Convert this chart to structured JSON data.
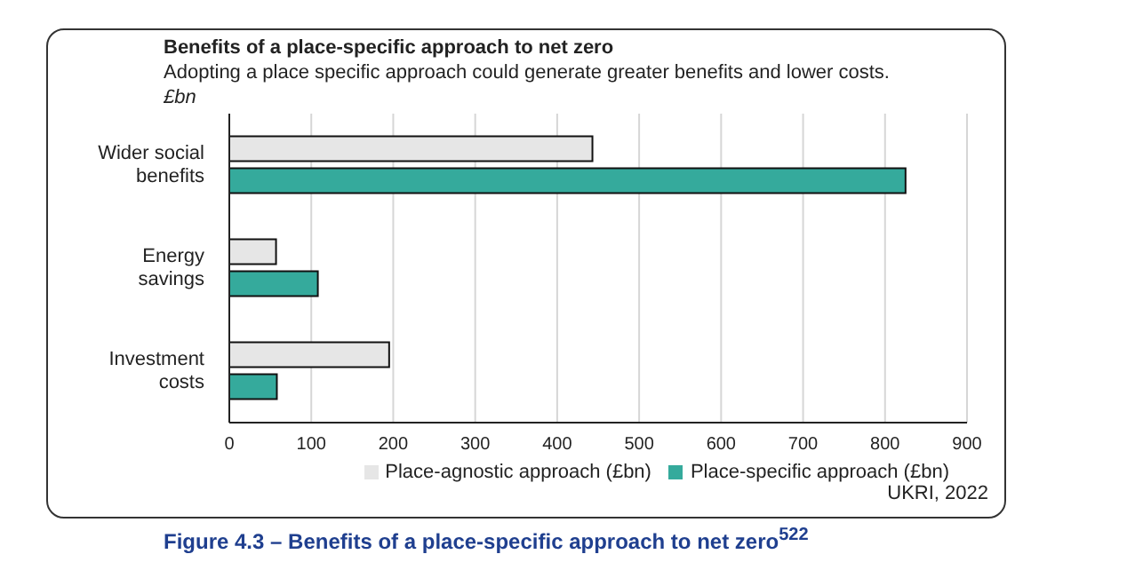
{
  "chart_data": {
    "type": "bar",
    "orientation": "horizontal",
    "title": "Benefits of a place-specific approach to net zero",
    "subtitle": "Adopting a place specific approach could generate greater benefits and lower costs.",
    "xlabel": "£bn",
    "categories": [
      "Wider social benefits",
      "Energy savings",
      "Investment costs"
    ],
    "series": [
      {
        "name": "Place-agnostic approach (£bn)",
        "color": "#e6e6e6",
        "values": [
          443,
          57,
          195
        ]
      },
      {
        "name": "Place-specific approach (£bn)",
        "color": "#35aa9c",
        "values": [
          825,
          108,
          58
        ]
      }
    ],
    "xlim": [
      0,
      900
    ],
    "xticks": [
      0,
      100,
      200,
      300,
      400,
      500,
      600,
      700,
      800,
      900
    ],
    "grid": "x",
    "legend": "bottom",
    "annotations": [
      "UKRI, 2022",
      "Figure 4.3 – Benefits of a place-specific approach to net zero$^{522}$"
    ]
  }
}
